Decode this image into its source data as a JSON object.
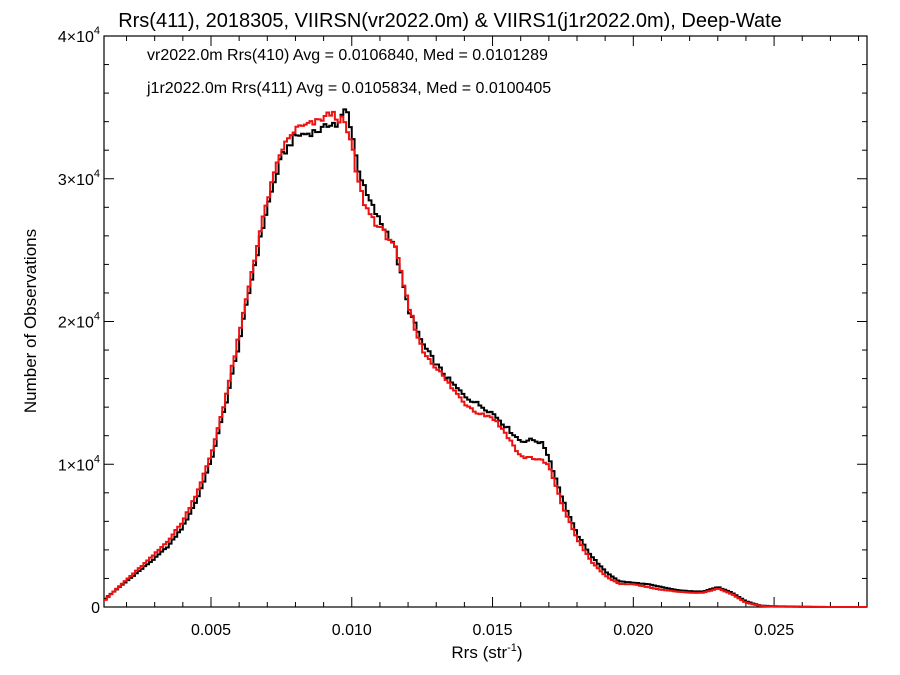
{
  "chart_data": {
    "type": "line",
    "title": "Rrs(411), 2018305, VIIRSN(vr2022.0m) & VIIRS1(j1r2022.0m), Deep-Wate",
    "xlabel": "Rrs (str",
    "xlabel_sup": "-1",
    "xlabel_end": ")",
    "ylabel": "Number of Observations",
    "xlim": [
      0.0012,
      0.0283
    ],
    "ylim": [
      0,
      40000
    ],
    "grid": false,
    "legend_position": "top-left",
    "x_ticks": [
      {
        "value": 0.005,
        "label": "0.005"
      },
      {
        "value": 0.01,
        "label": "0.010"
      },
      {
        "value": 0.015,
        "label": "0.015"
      },
      {
        "value": 0.02,
        "label": "0.020"
      },
      {
        "value": 0.025,
        "label": "0.025"
      }
    ],
    "y_ticks": [
      {
        "value": 0,
        "label": "0",
        "sup": ""
      },
      {
        "value": 10000,
        "label": "1×10",
        "sup": "4"
      },
      {
        "value": 20000,
        "label": "2×10",
        "sup": "4"
      },
      {
        "value": 30000,
        "label": "3×10",
        "sup": "4"
      },
      {
        "value": 40000,
        "label": "4×10",
        "sup": "4"
      }
    ],
    "series": [
      {
        "name": "vr2022.0m Rrs(410) Avg = 0.0106840, Med = 0.0101289",
        "color": "#000000",
        "x": [
          0.0012,
          0.0015,
          0.002,
          0.0025,
          0.003,
          0.0035,
          0.004,
          0.0045,
          0.005,
          0.0055,
          0.006,
          0.0065,
          0.007,
          0.0075,
          0.008,
          0.0085,
          0.009,
          0.0093,
          0.0095,
          0.0097,
          0.0098,
          0.01,
          0.0102,
          0.0105,
          0.011,
          0.0115,
          0.012,
          0.0125,
          0.013,
          0.0135,
          0.014,
          0.0145,
          0.015,
          0.0155,
          0.016,
          0.0163,
          0.0165,
          0.0168,
          0.017,
          0.0175,
          0.018,
          0.0185,
          0.019,
          0.0195,
          0.02,
          0.0205,
          0.021,
          0.0215,
          0.022,
          0.0225,
          0.023,
          0.0235,
          0.024,
          0.0245,
          0.025,
          0.026,
          0.027,
          0.0283
        ],
        "y": [
          500,
          1000,
          1800,
          2600,
          3400,
          4300,
          5600,
          7500,
          10200,
          14000,
          18500,
          23500,
          28000,
          31500,
          33000,
          33200,
          33500,
          34000,
          33600,
          34600,
          35000,
          33400,
          31000,
          29000,
          27000,
          25500,
          21000,
          18500,
          17000,
          15800,
          14800,
          14200,
          13600,
          12600,
          11600,
          11700,
          11700,
          11400,
          10500,
          7500,
          5100,
          3600,
          2500,
          1800,
          1700,
          1600,
          1400,
          1200,
          1100,
          1100,
          1400,
          1000,
          400,
          100,
          50,
          20,
          0,
          0
        ]
      },
      {
        "name": "j1r2022.0m Rrs(411) Avg = 0.0105834, Med = 0.0100405",
        "color": "#ee1111",
        "x": [
          0.0012,
          0.0015,
          0.002,
          0.0025,
          0.003,
          0.0035,
          0.004,
          0.0045,
          0.005,
          0.0055,
          0.006,
          0.0065,
          0.007,
          0.0075,
          0.008,
          0.0085,
          0.0088,
          0.009,
          0.0093,
          0.0095,
          0.0097,
          0.01,
          0.0102,
          0.0105,
          0.011,
          0.0115,
          0.012,
          0.0125,
          0.013,
          0.0135,
          0.014,
          0.0145,
          0.015,
          0.0155,
          0.016,
          0.0163,
          0.0165,
          0.0168,
          0.017,
          0.0175,
          0.018,
          0.0185,
          0.019,
          0.0195,
          0.02,
          0.0205,
          0.021,
          0.0215,
          0.022,
          0.0225,
          0.023,
          0.0235,
          0.024,
          0.0245,
          0.025,
          0.026,
          0.027,
          0.0283
        ],
        "y": [
          400,
          1000,
          1900,
          2800,
          3700,
          4700,
          6000,
          8000,
          10600,
          14500,
          19000,
          24000,
          28500,
          32000,
          33500,
          33800,
          34000,
          34300,
          34600,
          34200,
          34100,
          32400,
          30000,
          28000,
          26500,
          25500,
          21200,
          18000,
          16800,
          15500,
          14300,
          13600,
          13300,
          12100,
          10500,
          10500,
          10400,
          10200,
          9900,
          7000,
          4800,
          3200,
          2200,
          1600,
          1600,
          1400,
          1200,
          1100,
          1000,
          1000,
          1300,
          900,
          300,
          80,
          30,
          10,
          0,
          0
        ]
      }
    ]
  }
}
